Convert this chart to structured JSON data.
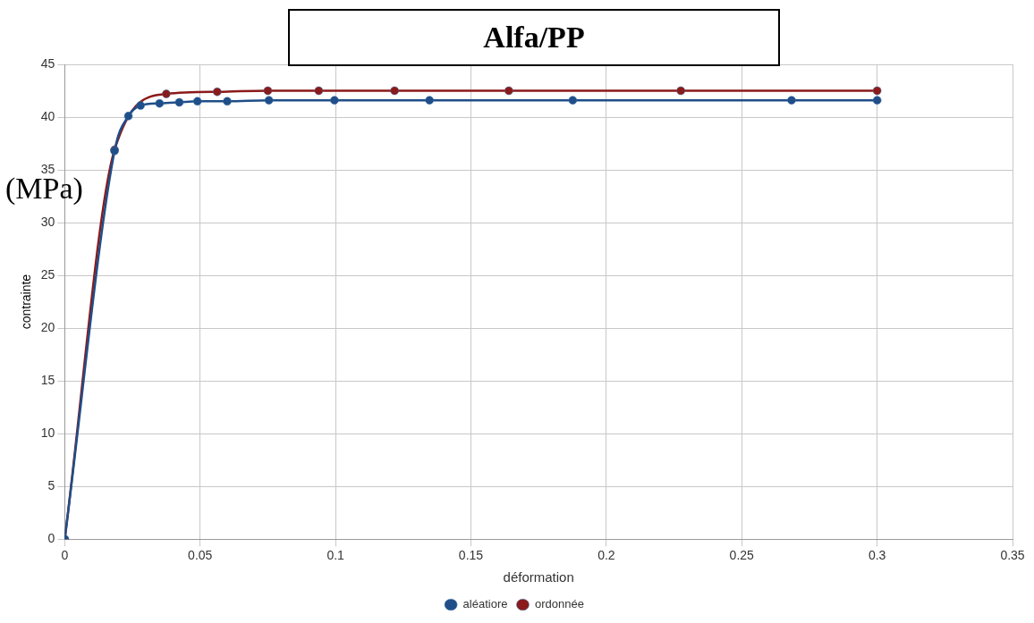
{
  "chart_data": {
    "type": "line",
    "title": "Alfa/PP",
    "xlabel": "déformation",
    "ylabel": "contrainte",
    "annotations": [
      "(MPa)"
    ],
    "xlim": [
      0,
      0.35
    ],
    "xticks": [
      0,
      0.05,
      0.1,
      0.15,
      0.2,
      0.25,
      0.3,
      0.35
    ],
    "ylim": [
      0,
      45
    ],
    "yticks": [
      0,
      5,
      10,
      15,
      20,
      25,
      30,
      35,
      40,
      45
    ],
    "grid": true,
    "legend": "bottom",
    "marker": "circle",
    "line_style": "solid",
    "series": [
      {
        "name": "ordonnée",
        "color": "#8b1a1a",
        "x": [
          0,
          0.0184,
          0.0375,
          0.0563,
          0.075,
          0.0938,
          0.1218,
          0.164,
          0.2275,
          0.3
        ],
        "values": [
          0,
          36.9,
          42.2,
          42.4,
          42.5,
          42.5,
          42.5,
          42.5,
          42.5,
          42.5
        ]
      },
      {
        "name": "aléatiore",
        "color": "#1f4e89",
        "x": [
          0,
          0.0184,
          0.0235,
          0.028,
          0.035,
          0.0423,
          0.049,
          0.06,
          0.0754,
          0.0996,
          0.1347,
          0.1876,
          0.2684,
          0.3
        ],
        "values": [
          0,
          36.8,
          40.1,
          41.1,
          41.3,
          41.4,
          41.5,
          41.5,
          41.6,
          41.6,
          41.6,
          41.6,
          41.6,
          41.6
        ]
      }
    ]
  }
}
